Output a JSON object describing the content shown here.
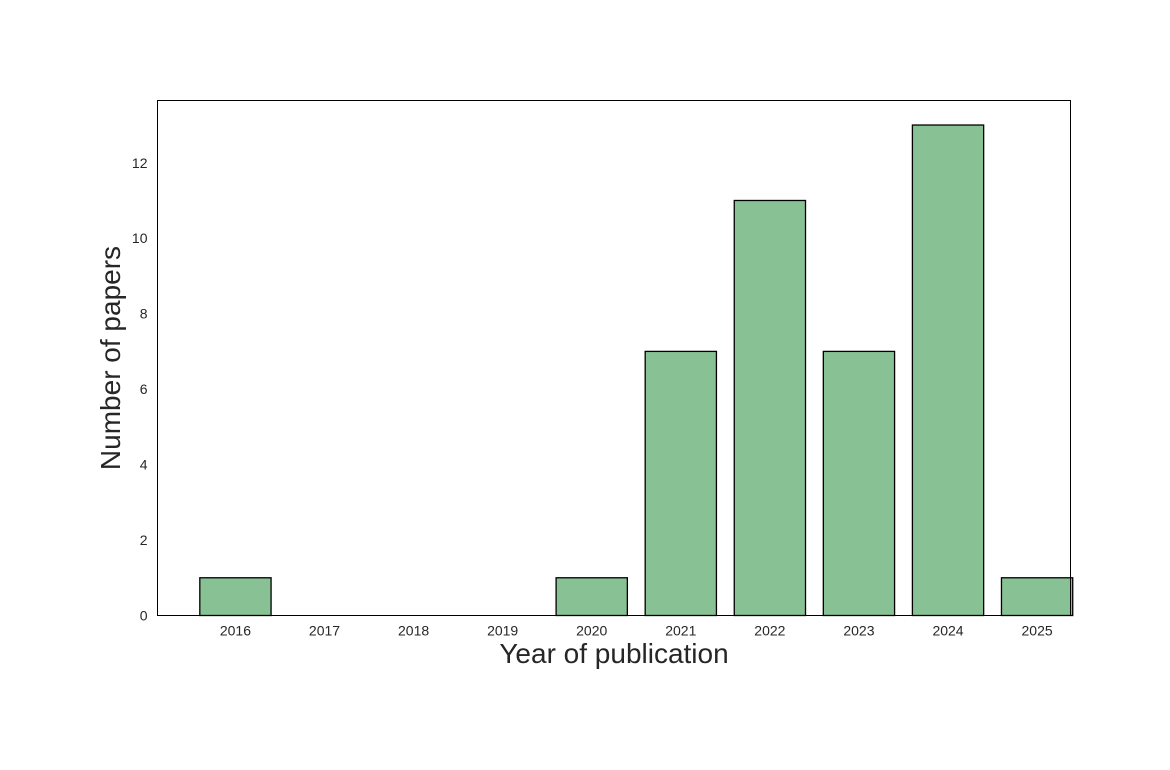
{
  "chart_data": {
    "type": "bar",
    "title": "",
    "xlabel": "Year of publication",
    "ylabel": "Number of papers",
    "categories": [
      "2016",
      "2017",
      "2018",
      "2019",
      "2020",
      "2021",
      "2022",
      "2023",
      "2024",
      "2025"
    ],
    "values": [
      1,
      0,
      0,
      0,
      1,
      7,
      11,
      7,
      13,
      1
    ],
    "ylim": [
      0,
      13.65
    ],
    "yticks": [
      0,
      2,
      4,
      6,
      8,
      10,
      12
    ],
    "grid": false,
    "legend": "none",
    "colors": {
      "bar_fill": "#88c194",
      "bar_edge": "#000000",
      "axes_edge": "#000000",
      "text": "#262626"
    }
  }
}
